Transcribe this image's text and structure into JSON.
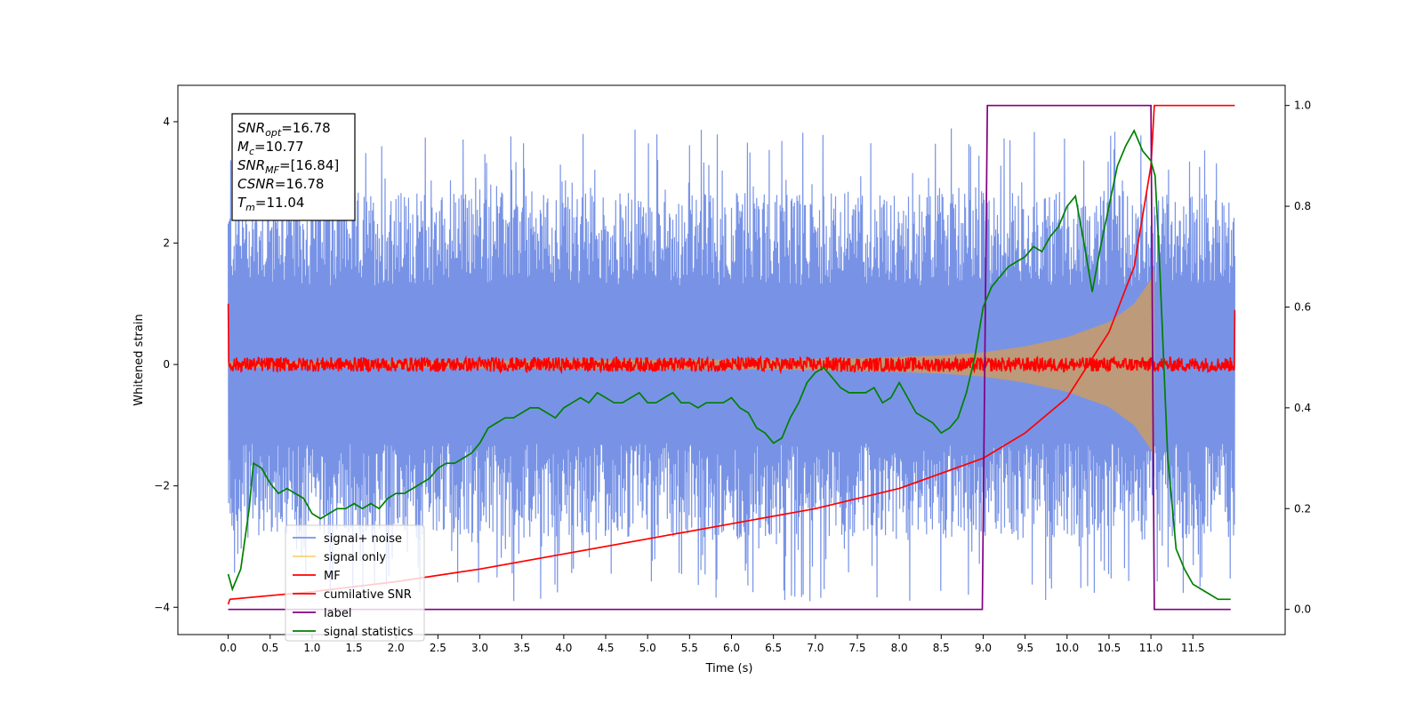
{
  "chart_data": {
    "type": "line",
    "xlabel": "Time (s)",
    "ylabel": "Whitened strain",
    "xlim": [
      -0.6,
      12.6
    ],
    "ylim": [
      -4.45,
      4.6
    ],
    "y2lim": [
      -0.05,
      1.04
    ],
    "x_ticks": [
      "0.0",
      "0.5",
      "1.0",
      "1.5",
      "2.0",
      "2.5",
      "3.0",
      "3.5",
      "4.0",
      "4.5",
      "5.0",
      "5.5",
      "6.0",
      "6.5",
      "7.0",
      "7.5",
      "8.0",
      "8.5",
      "9.0",
      "9.5",
      "10.0",
      "10.5",
      "11.0",
      "11.5"
    ],
    "y_ticks": [
      "4",
      "2",
      "0",
      "−2",
      "−4"
    ],
    "y_tick_values": [
      4,
      2,
      0,
      -2,
      -4
    ],
    "y2_ticks": [
      "1.0",
      "0.8",
      "0.6",
      "0.4",
      "0.2",
      "0.0"
    ],
    "y2_tick_values": [
      1.0,
      0.8,
      0.6,
      0.4,
      0.2,
      0.0
    ],
    "grid": false,
    "legend_position": "lower-left",
    "annotation": {
      "lines": [
        {
          "base": "SNR",
          "sub": "opt",
          "value": "=16.78"
        },
        {
          "base": "M",
          "sub": "c",
          "value": "=10.77"
        },
        {
          "base": "SNR",
          "sub": "MF",
          "value": "=[16.84]"
        },
        {
          "base": "CSNR",
          "sub": "",
          "value": "=16.78"
        },
        {
          "base": "T",
          "sub": "m",
          "value": "=11.04"
        }
      ]
    },
    "series": [
      {
        "name": "signal+ noise",
        "color": "#7893e6",
        "axis": "left",
        "kind": "noise",
        "low": [
          -3.9,
          -1.3
        ],
        "high": [
          1.3,
          3.9
        ],
        "x_range": [
          0,
          12
        ]
      },
      {
        "name": "signal only",
        "color": "#f8d37a",
        "fill_color": "#c19a74",
        "axis": "left",
        "kind": "chirp",
        "envelope": {
          "x": [
            0,
            6.0,
            7.5,
            8.5,
            9.0,
            9.5,
            10.0,
            10.5,
            10.8,
            11.0,
            11.04
          ],
          "y": [
            0.05,
            0.08,
            0.1,
            0.15,
            0.2,
            0.3,
            0.45,
            0.7,
            1.0,
            1.4,
            1.6
          ]
        }
      },
      {
        "name": "MF",
        "color": "#ff0000",
        "axis": "left",
        "kind": "mf_noise",
        "amplitude": 0.12,
        "start": 1.0,
        "end": 0.9,
        "x_range": [
          0,
          12
        ]
      },
      {
        "name": "cumilative SNR",
        "color": "#ff0000",
        "axis": "right",
        "kind": "line",
        "x": [
          0,
          0.02,
          1.0,
          2.0,
          3.0,
          4.0,
          5.0,
          6.0,
          7.0,
          8.0,
          9.0,
          9.5,
          10.0,
          10.5,
          10.8,
          11.0,
          11.04,
          11.05,
          12.0
        ],
        "y": [
          0.01,
          0.02,
          0.035,
          0.055,
          0.08,
          0.11,
          0.14,
          0.17,
          0.2,
          0.24,
          0.3,
          0.35,
          0.42,
          0.55,
          0.68,
          0.88,
          1.0,
          1.0,
          1.0
        ]
      },
      {
        "name": "label",
        "color": "#800080",
        "axis": "right",
        "kind": "line",
        "x": [
          0,
          8.99,
          9.05,
          11.0,
          11.04,
          11.95
        ],
        "y": [
          0.0,
          0.0,
          1.0,
          1.0,
          0.0,
          0.0
        ]
      },
      {
        "name": "signal statistics",
        "color": "#008000",
        "axis": "right",
        "kind": "line",
        "x": [
          0.0,
          0.05,
          0.15,
          0.25,
          0.3,
          0.4,
          0.5,
          0.6,
          0.7,
          0.8,
          0.9,
          1.0,
          1.1,
          1.2,
          1.3,
          1.4,
          1.5,
          1.6,
          1.7,
          1.8,
          1.9,
          2.0,
          2.1,
          2.2,
          2.3,
          2.4,
          2.5,
          2.6,
          2.7,
          2.8,
          2.9,
          3.0,
          3.1,
          3.2,
          3.3,
          3.4,
          3.5,
          3.6,
          3.7,
          3.8,
          3.9,
          4.0,
          4.1,
          4.2,
          4.3,
          4.4,
          4.5,
          4.6,
          4.7,
          4.8,
          4.9,
          5.0,
          5.1,
          5.2,
          5.3,
          5.4,
          5.5,
          5.6,
          5.7,
          5.8,
          5.9,
          6.0,
          6.1,
          6.2,
          6.3,
          6.4,
          6.5,
          6.6,
          6.7,
          6.8,
          6.9,
          7.0,
          7.1,
          7.2,
          7.3,
          7.4,
          7.5,
          7.6,
          7.7,
          7.8,
          7.9,
          8.0,
          8.1,
          8.2,
          8.3,
          8.4,
          8.5,
          8.6,
          8.7,
          8.8,
          8.9,
          9.0,
          9.1,
          9.2,
          9.3,
          9.4,
          9.5,
          9.6,
          9.7,
          9.8,
          9.9,
          10.0,
          10.1,
          10.2,
          10.3,
          10.4,
          10.5,
          10.6,
          10.7,
          10.8,
          10.9,
          11.0,
          11.05,
          11.1,
          11.2,
          11.3,
          11.4,
          11.5,
          11.6,
          11.7,
          11.8,
          11.95
        ],
        "y": [
          0.07,
          0.04,
          0.08,
          0.2,
          0.29,
          0.28,
          0.25,
          0.23,
          0.24,
          0.23,
          0.22,
          0.19,
          0.18,
          0.19,
          0.2,
          0.2,
          0.21,
          0.2,
          0.21,
          0.2,
          0.22,
          0.23,
          0.23,
          0.24,
          0.25,
          0.26,
          0.28,
          0.29,
          0.29,
          0.3,
          0.31,
          0.33,
          0.36,
          0.37,
          0.38,
          0.38,
          0.39,
          0.4,
          0.4,
          0.39,
          0.38,
          0.4,
          0.41,
          0.42,
          0.41,
          0.43,
          0.42,
          0.41,
          0.41,
          0.42,
          0.43,
          0.41,
          0.41,
          0.42,
          0.43,
          0.41,
          0.41,
          0.4,
          0.41,
          0.41,
          0.41,
          0.42,
          0.4,
          0.39,
          0.36,
          0.35,
          0.33,
          0.34,
          0.38,
          0.41,
          0.45,
          0.47,
          0.48,
          0.46,
          0.44,
          0.43,
          0.43,
          0.43,
          0.44,
          0.41,
          0.42,
          0.45,
          0.42,
          0.39,
          0.38,
          0.37,
          0.35,
          0.36,
          0.38,
          0.43,
          0.5,
          0.6,
          0.64,
          0.66,
          0.68,
          0.69,
          0.7,
          0.72,
          0.71,
          0.74,
          0.76,
          0.8,
          0.82,
          0.73,
          0.63,
          0.72,
          0.8,
          0.88,
          0.92,
          0.95,
          0.91,
          0.89,
          0.86,
          0.7,
          0.3,
          0.12,
          0.08,
          0.05,
          0.04,
          0.03,
          0.02,
          0.02
        ]
      }
    ]
  }
}
